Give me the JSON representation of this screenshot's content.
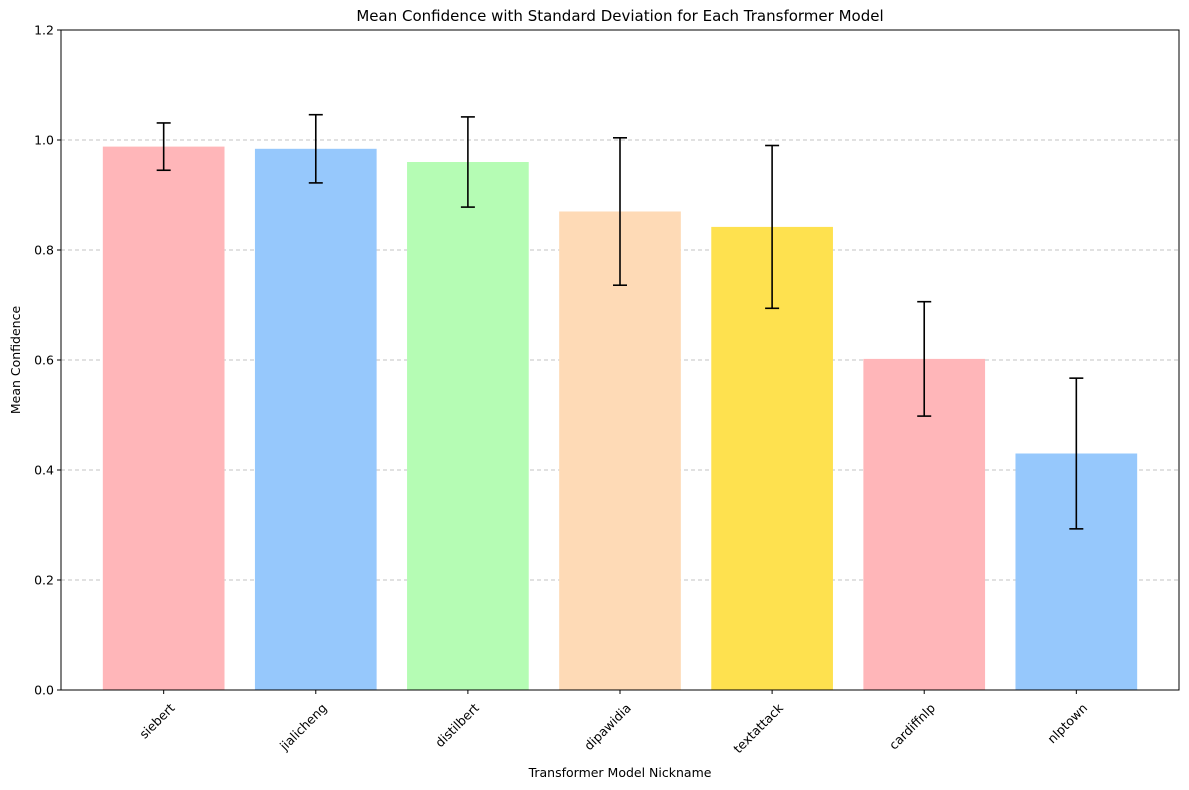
{
  "chart_data": {
    "type": "bar",
    "title": "Mean Confidence with Standard Deviation for Each Transformer Model",
    "xlabel": "Transformer Model Nickname",
    "ylabel": "Mean Confidence",
    "categories": [
      "siebert",
      "jialicheng",
      "distilbert",
      "dipawidia",
      "textattack",
      "cardiffnlp",
      "nlptown"
    ],
    "values": [
      0.988,
      0.984,
      0.96,
      0.87,
      0.842,
      0.602,
      0.43
    ],
    "errors": [
      0.043,
      0.062,
      0.082,
      0.134,
      0.148,
      0.104,
      0.137
    ],
    "colors": [
      "#ffb6b9",
      "#96c8fc",
      "#b5fcb4",
      "#fedab6",
      "#fee14f",
      "#ffb6b9",
      "#96c8fc"
    ],
    "ylim": [
      0,
      1.2
    ],
    "yticks": [
      "0.0",
      "0.2",
      "0.4",
      "0.6",
      "0.8",
      "1.0",
      "1.2"
    ],
    "grid": "y-dashed",
    "legend": "none"
  }
}
